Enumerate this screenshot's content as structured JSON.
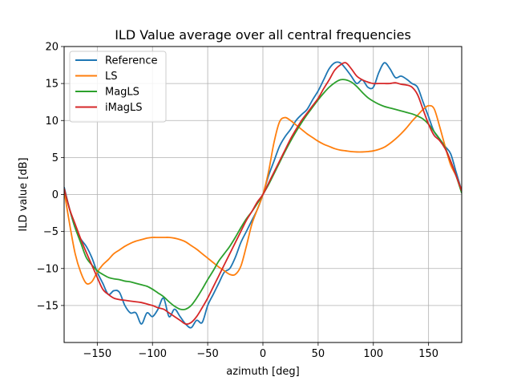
{
  "chart_data": {
    "type": "line",
    "title": "ILD Value average over all central frequencies",
    "xlabel": "azimuth [deg]",
    "ylabel": "ILD value [dB]",
    "xlim": [
      -180,
      180
    ],
    "ylim": [
      -20,
      20
    ],
    "xticks": [
      -150,
      -100,
      -50,
      0,
      50,
      100,
      150
    ],
    "yticks": [
      -15,
      -10,
      -5,
      0,
      5,
      10,
      15,
      20
    ],
    "grid": true,
    "legend_position": "top-left",
    "series": [
      {
        "name": "Reference",
        "color": "#1f77b4",
        "x": [
          -180,
          -175,
          -170,
          -165,
          -160,
          -155,
          -150,
          -145,
          -140,
          -135,
          -130,
          -125,
          -120,
          -115,
          -110,
          -105,
          -100,
          -95,
          -90,
          -85,
          -80,
          -75,
          -70,
          -65,
          -60,
          -55,
          -50,
          -45,
          -40,
          -35,
          -30,
          -25,
          -20,
          -15,
          -10,
          -5,
          0,
          5,
          10,
          15,
          20,
          25,
          30,
          35,
          40,
          45,
          50,
          55,
          60,
          65,
          70,
          75,
          80,
          85,
          90,
          95,
          100,
          105,
          110,
          115,
          120,
          125,
          130,
          135,
          140,
          145,
          150,
          155,
          160,
          165,
          170,
          175,
          180
        ],
        "y": [
          1,
          -2,
          -4.5,
          -6,
          -7,
          -8.5,
          -10.5,
          -12,
          -13.5,
          -13,
          -13.2,
          -15,
          -16,
          -16,
          -17.5,
          -16,
          -16.5,
          -15.5,
          -14,
          -16.5,
          -15.5,
          -16.5,
          -17.5,
          -18,
          -17,
          -17.3,
          -15,
          -13.5,
          -12,
          -10.5,
          -10,
          -8.5,
          -6.5,
          -5,
          -3.5,
          -2,
          0,
          2.5,
          4.5,
          6.5,
          7.8,
          8.8,
          10,
          10.8,
          11.5,
          12.8,
          14,
          15.5,
          17,
          17.8,
          17.8,
          17,
          16,
          15,
          15.5,
          14.5,
          14.5,
          16.5,
          17.8,
          17,
          15.8,
          16,
          15.6,
          15,
          14.5,
          12.5,
          10.5,
          8.5,
          7.5,
          6.5,
          5.5,
          3,
          0.5
        ]
      },
      {
        "name": "LS",
        "color": "#ff7f0e",
        "x": [
          -180,
          -175,
          -170,
          -165,
          -160,
          -155,
          -150,
          -145,
          -140,
          -135,
          -130,
          -125,
          -120,
          -115,
          -110,
          -105,
          -100,
          -95,
          -90,
          -85,
          -80,
          -75,
          -70,
          -65,
          -60,
          -55,
          -50,
          -45,
          -40,
          -35,
          -30,
          -25,
          -20,
          -15,
          -10,
          -5,
          0,
          5,
          10,
          15,
          20,
          25,
          30,
          35,
          40,
          45,
          50,
          55,
          60,
          65,
          70,
          75,
          80,
          85,
          90,
          95,
          100,
          105,
          110,
          115,
          120,
          125,
          130,
          135,
          140,
          145,
          150,
          155,
          160,
          165,
          170,
          175,
          180
        ],
        "y": [
          0.5,
          -4,
          -8,
          -10.5,
          -12,
          -11.8,
          -10.5,
          -9.5,
          -8.8,
          -8,
          -7.5,
          -7,
          -6.6,
          -6.3,
          -6.1,
          -5.9,
          -5.8,
          -5.8,
          -5.8,
          -5.8,
          -5.9,
          -6.1,
          -6.4,
          -6.9,
          -7.4,
          -8,
          -8.6,
          -9.2,
          -9.8,
          -10.3,
          -10.8,
          -10.8,
          -9.7,
          -7,
          -4,
          -2,
          0,
          3,
          7,
          9.8,
          10.4,
          10,
          9.4,
          8.8,
          8.2,
          7.7,
          7.2,
          6.8,
          6.5,
          6.2,
          6,
          5.9,
          5.8,
          5.75,
          5.75,
          5.8,
          5.9,
          6.1,
          6.4,
          6.9,
          7.5,
          8.2,
          9,
          9.9,
          10.7,
          11.5,
          12,
          11.6,
          9.2,
          6.5,
          4,
          2.5,
          0.5
        ]
      },
      {
        "name": "MagLS",
        "color": "#2ca02c",
        "x": [
          -180,
          -175,
          -170,
          -165,
          -160,
          -155,
          -150,
          -145,
          -140,
          -135,
          -130,
          -125,
          -120,
          -115,
          -110,
          -105,
          -100,
          -95,
          -90,
          -85,
          -80,
          -75,
          -70,
          -65,
          -60,
          -55,
          -50,
          -45,
          -40,
          -35,
          -30,
          -25,
          -20,
          -15,
          -10,
          -5,
          0,
          5,
          10,
          15,
          20,
          25,
          30,
          35,
          40,
          45,
          50,
          55,
          60,
          65,
          70,
          75,
          80,
          85,
          90,
          95,
          100,
          105,
          110,
          115,
          120,
          125,
          130,
          135,
          140,
          145,
          150,
          155,
          160,
          165,
          170,
          175,
          180
        ],
        "y": [
          0.8,
          -2,
          -4.5,
          -6.5,
          -8.5,
          -9.5,
          -10.3,
          -10.8,
          -11.2,
          -11.4,
          -11.5,
          -11.7,
          -11.8,
          -12,
          -12.2,
          -12.4,
          -12.8,
          -13.3,
          -13.8,
          -14.5,
          -15.1,
          -15.5,
          -15.5,
          -15,
          -14,
          -12.8,
          -11.5,
          -10.3,
          -9,
          -8,
          -7,
          -5.8,
          -4.5,
          -3.3,
          -2.3,
          -1.2,
          0,
          1.3,
          2.8,
          4.3,
          5.8,
          7.2,
          8.5,
          9.7,
          10.8,
          11.8,
          12.8,
          13.7,
          14.5,
          15.1,
          15.5,
          15.5,
          15.2,
          14.6,
          13.8,
          13.1,
          12.6,
          12.2,
          11.9,
          11.7,
          11.5,
          11.3,
          11.1,
          10.9,
          10.6,
          10.2,
          9.5,
          8.5,
          7.5,
          6.3,
          4.5,
          2.5,
          0.2
        ]
      },
      {
        "name": "iMagLS",
        "color": "#d62728",
        "x": [
          -180,
          -175,
          -170,
          -165,
          -160,
          -155,
          -150,
          -145,
          -140,
          -135,
          -130,
          -125,
          -120,
          -115,
          -110,
          -105,
          -100,
          -95,
          -90,
          -85,
          -80,
          -75,
          -70,
          -65,
          -60,
          -55,
          -50,
          -45,
          -40,
          -35,
          -30,
          -25,
          -20,
          -15,
          -10,
          -5,
          0,
          5,
          10,
          15,
          20,
          25,
          30,
          35,
          40,
          45,
          50,
          55,
          60,
          65,
          70,
          75,
          80,
          85,
          90,
          95,
          100,
          105,
          110,
          115,
          120,
          125,
          130,
          135,
          140,
          145,
          150,
          155,
          160,
          165,
          170,
          175,
          180
        ],
        "y": [
          0.8,
          -2,
          -4,
          -6,
          -7.8,
          -9.5,
          -11.2,
          -12.8,
          -13.5,
          -14,
          -14.2,
          -14.3,
          -14.4,
          -14.5,
          -14.6,
          -14.8,
          -15,
          -15.3,
          -15.5,
          -16,
          -16.5,
          -17,
          -17.5,
          -17.3,
          -16.5,
          -15.3,
          -14,
          -12.5,
          -11,
          -9.5,
          -8,
          -6.5,
          -5,
          -3.5,
          -2.3,
          -1,
          0,
          1.5,
          3,
          4.5,
          6,
          7.5,
          8.8,
          10,
          11,
          12,
          13,
          14.3,
          15.5,
          16.8,
          17.5,
          17.8,
          17,
          16,
          15.5,
          15.2,
          15,
          15,
          15,
          15,
          15.1,
          14.9,
          14.8,
          14.5,
          13.5,
          11.5,
          9.5,
          8,
          7.3,
          6.2,
          4.5,
          2.5,
          0.5
        ]
      }
    ]
  }
}
